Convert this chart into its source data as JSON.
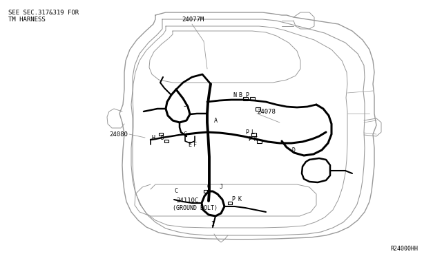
{
  "background_color": "#ffffff",
  "line_color": "#000000",
  "gray_color": "#666666",
  "light_gray": "#999999",
  "title_text1": "SEE SEC.317&319 FOR",
  "title_text2": "TM HARNESS",
  "label_24077M": "24077M",
  "label_24080": "24080",
  "label_24078": "24078",
  "label_24110C": "24110C",
  "label_ground": "(GROUND BOLT)",
  "label_r24000hh": "R24000HH",
  "font_size_small": 6.5
}
